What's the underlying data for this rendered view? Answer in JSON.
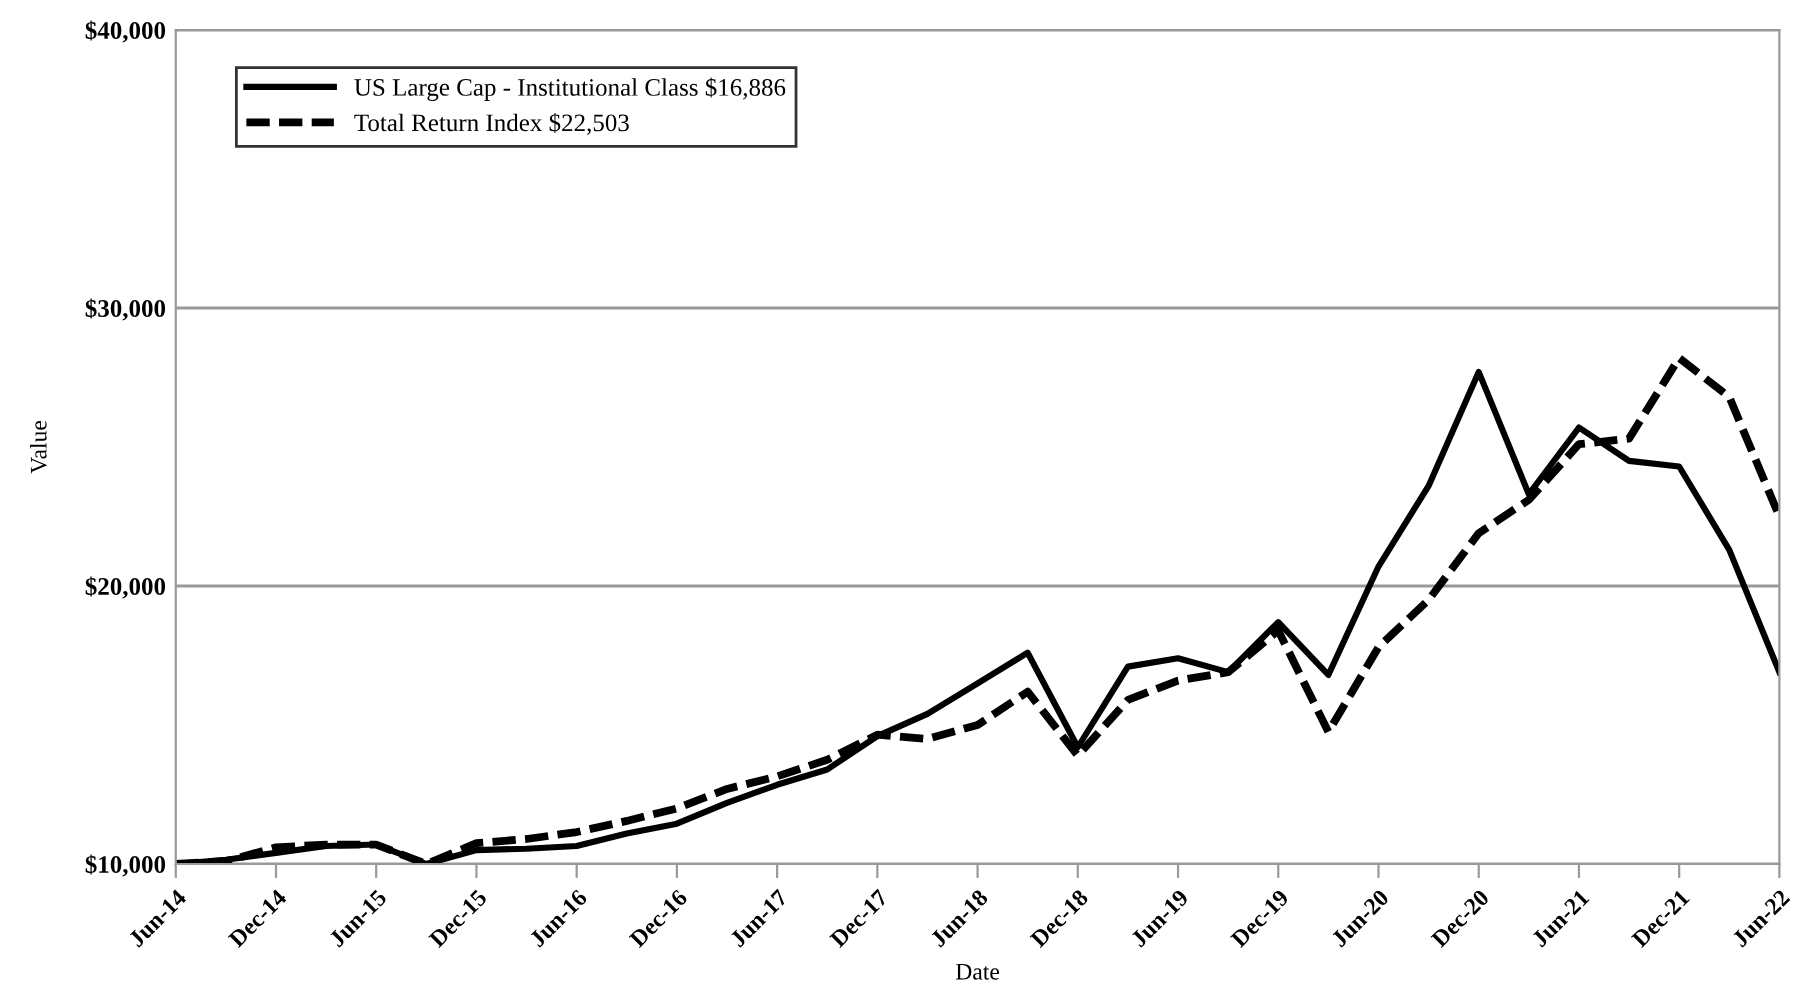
{
  "chart_data": {
    "type": "line",
    "xlabel": "Date",
    "ylabel": "Value",
    "categories": [
      "Jun-14",
      null,
      "Dec-14",
      null,
      "Jun-15",
      null,
      "Dec-15",
      null,
      "Jun-16",
      null,
      "Dec-16",
      null,
      "Jun-17",
      null,
      "Dec-17",
      null,
      "Jun-18",
      null,
      "Dec-18",
      null,
      "Jun-19",
      null,
      "Dec-19",
      null,
      "Jun-20",
      null,
      "Dec-20",
      null,
      "Jun-21",
      null,
      "Dec-21",
      null,
      "Jun-22"
    ],
    "series": [
      {
        "name": "US Large Cap - Institutional Class $16,886",
        "color": "#000000",
        "line_style": "solid",
        "values": [
          10000,
          10150,
          10400,
          10650,
          10700,
          10000,
          10500,
          10550,
          10650,
          11100,
          11450,
          12200,
          12850,
          13400,
          14600,
          15400,
          16500,
          17600,
          14200,
          17100,
          17400,
          16900,
          18700,
          16800,
          20700,
          23600,
          27700,
          23300,
          25700,
          24500,
          24300,
          21300,
          16900
        ]
      },
      {
        "name": "Total Return Index $22,503",
        "color": "#000000",
        "line_style": "dashed",
        "values": [
          10000,
          10100,
          10600,
          10700,
          10700,
          10000,
          10750,
          10900,
          11150,
          11550,
          12000,
          12700,
          13150,
          13750,
          14650,
          14500,
          15000,
          16200,
          13900,
          15900,
          16600,
          16900,
          18400,
          14750,
          17800,
          19500,
          21900,
          23100,
          25100,
          25300,
          28200,
          26800,
          22500
        ]
      }
    ],
    "ylim": [
      10000,
      40000
    ],
    "yticks": [
      {
        "value": 10000,
        "label": "$10,000"
      },
      {
        "value": 20000,
        "label": "$20,000"
      },
      {
        "value": 30000,
        "label": "$30,000"
      },
      {
        "value": 40000,
        "label": "$40,000"
      }
    ],
    "grid": "y",
    "legend": "top left",
    "marker": "none"
  }
}
